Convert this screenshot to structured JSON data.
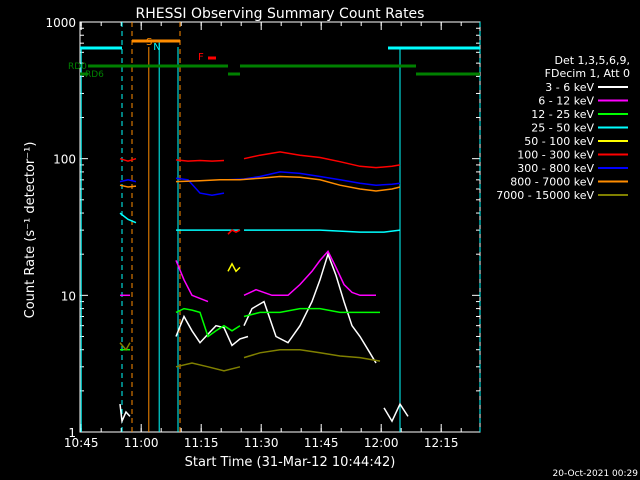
{
  "chart_data": {
    "type": "line",
    "title": "RHESSI Observing Summary Count Rates",
    "xlabel": "Start Time (31-Mar-12 10:44:42)",
    "ylabel": "Count Rate (s⁻¹ detector⁻¹)",
    "yscale": "log",
    "ylim": [
      1,
      1000
    ],
    "xlim_minutes": [
      0,
      100
    ],
    "x_tick_labels": [
      "10:45",
      "11:00",
      "11:15",
      "11:30",
      "11:45",
      "12:00",
      "12:15"
    ],
    "y_tick_labels": [
      "1",
      "10",
      "100",
      "1000"
    ],
    "legend_header": [
      "Det 1,3,5,6,9,",
      "FDecim 1, Att 0"
    ],
    "legend_position": "right",
    "footer_date": "20-Oct-2021 00:29",
    "series": [
      {
        "name": "3 - 6 keV",
        "color": "#ffffff",
        "segments": [
          [
            [
              10,
              1.6
            ],
            [
              10.5,
              1.2
            ],
            [
              11.5,
              1.4
            ],
            [
              12.5,
              1.3
            ]
          ],
          [
            [
              24,
              5
            ],
            [
              26,
              7
            ],
            [
              28,
              5.5
            ],
            [
              30,
              4.5
            ],
            [
              32,
              5.2
            ],
            [
              34,
              6
            ],
            [
              36,
              5.8
            ],
            [
              38,
              4.3
            ],
            [
              40,
              4.8
            ],
            [
              42,
              5
            ]
          ],
          [
            [
              41,
              6
            ],
            [
              43,
              8
            ],
            [
              46,
              9
            ],
            [
              49,
              5
            ],
            [
              52,
              4.5
            ],
            [
              55,
              6
            ],
            [
              58,
              9
            ],
            [
              60,
              13
            ],
            [
              62,
              20
            ],
            [
              64,
              14
            ],
            [
              66,
              9
            ],
            [
              68,
              6
            ],
            [
              70,
              5
            ],
            [
              72,
              4
            ],
            [
              74,
              3.2
            ]
          ],
          [
            [
              76,
              1.5
            ],
            [
              78,
              1.2
            ],
            [
              80,
              1.6
            ],
            [
              82,
              1.3
            ]
          ]
        ]
      },
      {
        "name": "6 - 12 keV",
        "color": "#ff00ff",
        "segments": [
          [
            [
              10,
              10
            ],
            [
              12.5,
              10
            ]
          ],
          [
            [
              24,
              18
            ],
            [
              26,
              13
            ],
            [
              28,
              10
            ],
            [
              30,
              9.5
            ],
            [
              32,
              9
            ]
          ],
          [
            [
              41,
              10
            ],
            [
              44,
              11
            ],
            [
              48,
              10
            ],
            [
              52,
              10
            ],
            [
              55,
              12
            ],
            [
              58,
              15
            ],
            [
              60,
              18
            ],
            [
              62,
              21
            ],
            [
              64,
              16
            ],
            [
              66,
              12
            ],
            [
              68,
              10.5
            ],
            [
              70,
              10
            ],
            [
              72,
              10
            ],
            [
              74,
              10
            ]
          ]
        ]
      },
      {
        "name": "12 - 25 keV",
        "color": "#00ff00",
        "segments": [
          [
            [
              10,
              4
            ],
            [
              12.5,
              4
            ]
          ],
          [
            [
              24,
              7.5
            ],
            [
              26,
              8
            ],
            [
              28,
              7.8
            ],
            [
              30,
              7.5
            ],
            [
              32,
              5
            ],
            [
              34,
              5.5
            ],
            [
              36,
              6
            ],
            [
              38,
              5.5
            ],
            [
              40,
              6
            ]
          ],
          [
            [
              41,
              7
            ],
            [
              45,
              7.5
            ],
            [
              50,
              7.5
            ],
            [
              55,
              8
            ],
            [
              60,
              8
            ],
            [
              65,
              7.5
            ],
            [
              70,
              7.5
            ],
            [
              75,
              7.5
            ]
          ]
        ]
      },
      {
        "name": "25 - 50 keV",
        "color": "#00ffff",
        "segments": [
          [
            [
              10,
              40
            ],
            [
              12,
              36
            ],
            [
              14,
              34
            ]
          ],
          [
            [
              24,
              30
            ],
            [
              30,
              30
            ],
            [
              33,
              30
            ],
            [
              36,
              30
            ],
            [
              38,
              30
            ],
            [
              40,
              30
            ]
          ],
          [
            [
              41,
              30
            ],
            [
              50,
              30
            ],
            [
              60,
              30
            ],
            [
              70,
              29
            ],
            [
              76,
              29
            ],
            [
              80,
              30
            ]
          ]
        ]
      },
      {
        "name": "50 - 100 keV",
        "color": "#ffff00",
        "segments": [
          [
            [
              37,
              15
            ],
            [
              38,
              17
            ],
            [
              39,
              15
            ],
            [
              40,
              16
            ]
          ]
        ]
      },
      {
        "name": "100 - 300 keV",
        "color": "#ff0000",
        "segments": [
          [
            [
              10,
              100
            ],
            [
              12,
              96
            ],
            [
              14,
              100
            ]
          ],
          [
            [
              24,
              98
            ],
            [
              27,
              96
            ],
            [
              30,
              97
            ],
            [
              33,
              96
            ],
            [
              36,
              97
            ]
          ],
          [
            [
              37,
              28
            ],
            [
              38,
              30
            ],
            [
              39,
              29
            ],
            [
              40,
              30
            ]
          ],
          [
            [
              41,
              100
            ],
            [
              45,
              106
            ],
            [
              50,
              112
            ],
            [
              55,
              106
            ],
            [
              60,
              102
            ],
            [
              65,
              95
            ],
            [
              70,
              88
            ],
            [
              74,
              86
            ],
            [
              78,
              88
            ],
            [
              80,
              90
            ]
          ]
        ]
      },
      {
        "name": "300 - 800 keV",
        "color": "#0000ff",
        "segments": [
          [
            [
              10,
              68
            ],
            [
              12,
              70
            ],
            [
              14,
              68
            ]
          ],
          [
            [
              24,
              72
            ],
            [
              27,
              70
            ],
            [
              30,
              56
            ],
            [
              33,
              54
            ],
            [
              36,
              56
            ]
          ],
          [
            [
              37,
              70
            ],
            [
              41,
              71
            ],
            [
              45,
              74
            ],
            [
              50,
              80
            ],
            [
              55,
              78
            ],
            [
              60,
              74
            ],
            [
              65,
              70
            ],
            [
              70,
              66
            ],
            [
              74,
              64
            ],
            [
              78,
              65
            ],
            [
              80,
              66
            ]
          ]
        ]
      },
      {
        "name": "800 - 7000 keV",
        "color": "#ff8c00",
        "segments": [
          [
            [
              10,
              64
            ],
            [
              12,
              62
            ],
            [
              14,
              63
            ]
          ],
          [
            [
              24,
              68
            ],
            [
              30,
              69
            ],
            [
              35,
              70
            ],
            [
              40,
              70
            ],
            [
              45,
              72
            ],
            [
              50,
              74
            ],
            [
              55,
              73
            ],
            [
              60,
              70
            ],
            [
              65,
              64
            ],
            [
              70,
              60
            ],
            [
              74,
              58
            ],
            [
              78,
              60
            ],
            [
              80,
              62
            ]
          ]
        ]
      },
      {
        "name": "7000 - 15000 keV",
        "color": "#808000",
        "segments": [
          [
            [
              10,
              4.5
            ],
            [
              11.5,
              4
            ],
            [
              12.5,
              4.5
            ]
          ],
          [
            [
              24,
              3
            ],
            [
              28,
              3.2
            ],
            [
              32,
              3
            ],
            [
              36,
              2.8
            ],
            [
              40,
              3
            ]
          ],
          [
            [
              41,
              3.5
            ],
            [
              45,
              3.8
            ],
            [
              50,
              4
            ],
            [
              55,
              4
            ],
            [
              60,
              3.8
            ],
            [
              65,
              3.6
            ],
            [
              70,
              3.5
            ],
            [
              75,
              3.3
            ]
          ]
        ]
      }
    ],
    "annotations": {
      "saa_label": "S",
      "night_label": "N",
      "flare_label": "F",
      "rd0_label": "RD0",
      "rd6_label": "RD6"
    },
    "day_night": [
      [
        0,
        10.5
      ],
      [
        77,
        100
      ]
    ],
    "saa_band": [
      [
        13,
        25
      ]
    ],
    "flare_mark": [
      [
        32,
        34
      ]
    ],
    "rd0_segments": [
      [
        2,
        37
      ],
      [
        40,
        84
      ]
    ],
    "rd6_segments": [
      [
        0,
        2
      ],
      [
        37,
        40
      ],
      [
        84,
        100
      ]
    ],
    "saa_vlines": [
      13,
      25
    ],
    "night_vlines": [
      10.5,
      100
    ]
  },
  "colors": {
    "background": "#000000",
    "text": "#ffffff",
    "axis": "#ffffff"
  }
}
